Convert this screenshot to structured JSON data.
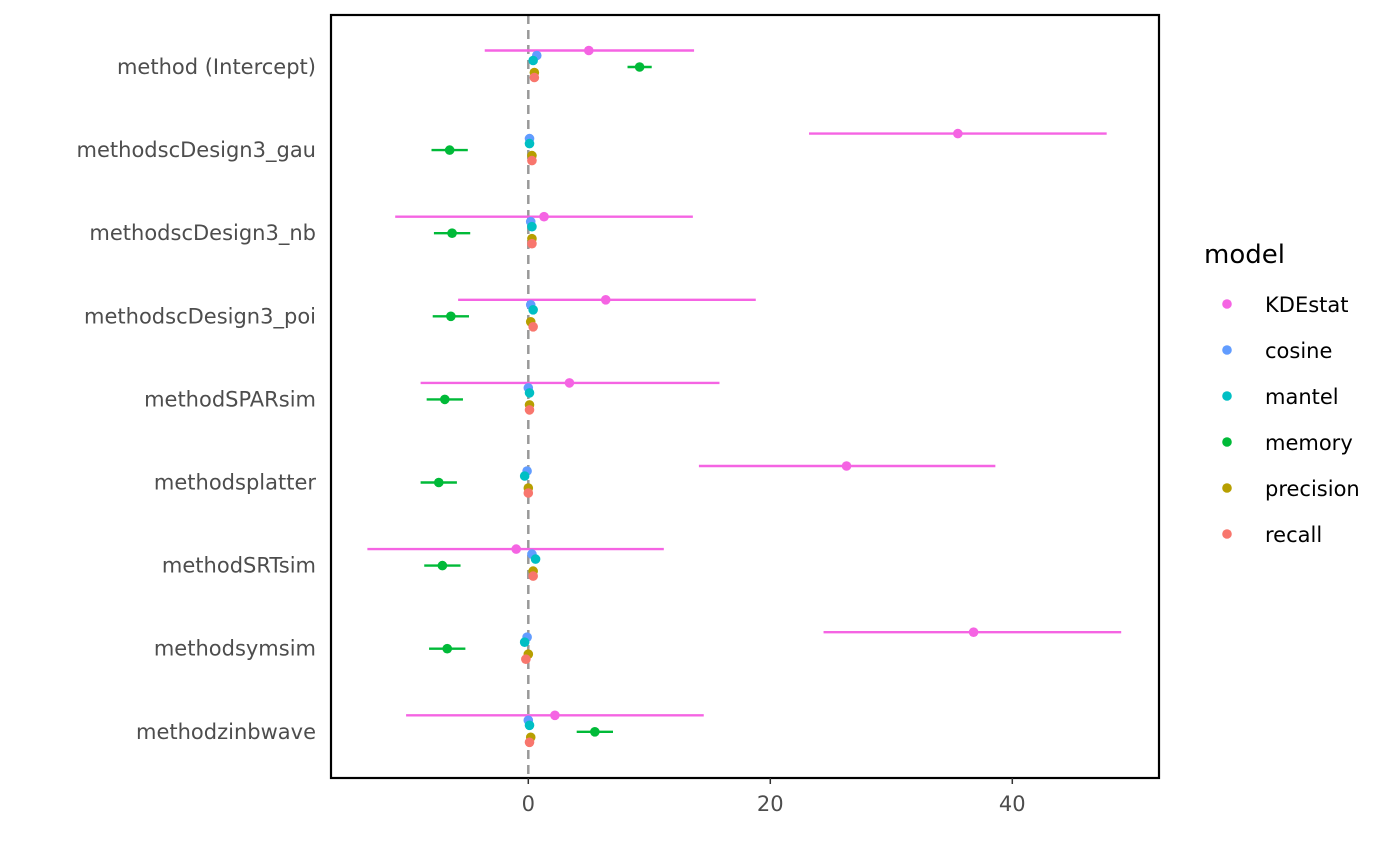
{
  "chart_data": {
    "type": "scatter",
    "subtype": "coefficient-plot",
    "categories": [
      "method (Intercept)",
      "methodscDesign3_gau",
      "methodscDesign3_nb",
      "methodscDesign3_poi",
      "methodSPARsim",
      "methodsplatter",
      "methodSRTsim",
      "methodsymsim",
      "methodzinbwave"
    ],
    "xlim": [
      -16,
      52
    ],
    "x_ticks": [
      "0",
      "20",
      "40"
    ],
    "x_tick_values": [
      0,
      20,
      40
    ],
    "reference_line": 0,
    "grid": false,
    "legend": {
      "title": "model",
      "position": "right"
    },
    "series": [
      {
        "name": "KDEstat",
        "color": "#F564E3",
        "estimate": [
          5.0,
          35.5,
          1.3,
          6.4,
          3.4,
          26.3,
          -1.0,
          36.8,
          2.2
        ],
        "lower": [
          -3.6,
          23.2,
          -11.0,
          -5.8,
          -8.9,
          14.1,
          -13.3,
          24.4,
          -10.1
        ],
        "upper": [
          13.7,
          47.8,
          13.6,
          18.8,
          15.8,
          38.6,
          11.2,
          49.0,
          14.5
        ]
      },
      {
        "name": "cosine",
        "color": "#619CFF",
        "estimate": [
          0.7,
          0.1,
          0.2,
          0.2,
          0.0,
          -0.1,
          0.3,
          -0.1,
          0.0
        ],
        "lower": [
          0.7,
          0.1,
          0.2,
          0.2,
          0.0,
          -0.1,
          0.3,
          -0.1,
          0.0
        ],
        "upper": [
          0.7,
          0.1,
          0.2,
          0.2,
          0.0,
          -0.1,
          0.3,
          -0.1,
          0.0
        ]
      },
      {
        "name": "mantel",
        "color": "#00BFC4",
        "estimate": [
          0.4,
          0.1,
          0.3,
          0.4,
          0.1,
          -0.3,
          0.6,
          -0.3,
          0.1
        ],
        "lower": [
          0.4,
          0.1,
          0.3,
          0.4,
          0.1,
          -0.3,
          0.6,
          -0.3,
          0.1
        ],
        "upper": [
          0.4,
          0.1,
          0.3,
          0.4,
          0.1,
          -0.3,
          0.6,
          -0.3,
          0.1
        ]
      },
      {
        "name": "memory",
        "color": "#00BA38",
        "estimate": [
          9.2,
          -6.5,
          -6.3,
          -6.4,
          -6.9,
          -7.4,
          -7.1,
          -6.7,
          5.5
        ],
        "lower": [
          8.2,
          -8.0,
          -7.8,
          -7.9,
          -8.4,
          -8.9,
          -8.6,
          -8.2,
          4.0
        ],
        "upper": [
          10.2,
          -5.0,
          -4.8,
          -4.9,
          -5.4,
          -5.9,
          -5.6,
          -5.2,
          7.0
        ]
      },
      {
        "name": "precision",
        "color": "#B79F00",
        "estimate": [
          0.5,
          0.3,
          0.3,
          0.2,
          0.1,
          0.0,
          0.4,
          0.0,
          0.2
        ],
        "lower": [
          0.5,
          0.3,
          0.3,
          0.2,
          0.1,
          0.0,
          0.4,
          0.0,
          0.2
        ],
        "upper": [
          0.5,
          0.3,
          0.3,
          0.2,
          0.1,
          0.0,
          0.4,
          0.0,
          0.2
        ]
      },
      {
        "name": "recall",
        "color": "#F8766D",
        "estimate": [
          0.5,
          0.3,
          0.3,
          0.4,
          0.1,
          0.0,
          0.4,
          -0.2,
          0.1
        ],
        "lower": [
          0.5,
          0.3,
          0.3,
          0.4,
          0.1,
          0.0,
          0.4,
          -0.2,
          0.1
        ],
        "upper": [
          0.5,
          0.3,
          0.3,
          0.4,
          0.1,
          0.0,
          0.4,
          -0.2,
          0.1
        ]
      }
    ],
    "legend_order": [
      "KDEstat",
      "cosine",
      "mantel",
      "memory",
      "precision",
      "recall"
    ]
  }
}
